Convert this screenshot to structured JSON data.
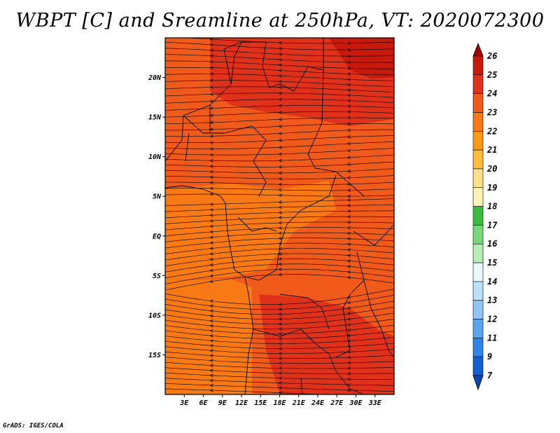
{
  "title": "WBPT [C] and Sreamline at 250hPa, VT: 2020072300",
  "credit": "GrADS: IGES/COLA",
  "map": {
    "lon_range": [
      0,
      36
    ],
    "lat_range": [
      -20,
      25
    ],
    "y_ticks": [
      "20N",
      "15N",
      "10N",
      "5N",
      "EQ",
      "5S",
      "10S",
      "15S"
    ],
    "y_tick_values": [
      20,
      15,
      10,
      5,
      0,
      -5,
      -10,
      -15
    ],
    "x_ticks": [
      "3E",
      "6E",
      "9E",
      "12E",
      "15E",
      "18E",
      "21E",
      "24E",
      "27E",
      "30E",
      "33E"
    ],
    "x_tick_values": [
      3,
      6,
      9,
      12,
      15,
      18,
      21,
      24,
      27,
      30,
      33
    ],
    "field_regions": [
      {
        "level": "24",
        "color": "#e0321a"
      },
      {
        "level": "23",
        "color": "#f05a1a"
      },
      {
        "level": "22",
        "color": "#f97a14"
      },
      {
        "level": "25",
        "color": "#c8190f"
      }
    ]
  },
  "colorbar": {
    "labels": [
      "26",
      "25",
      "24",
      "23",
      "22",
      "21",
      "20",
      "19",
      "18",
      "17",
      "16",
      "15",
      "14",
      "13",
      "12",
      "11",
      "9",
      "7"
    ],
    "colors": [
      "#a50000",
      "#c8190f",
      "#e0321a",
      "#f05a1a",
      "#f97a14",
      "#fc9a18",
      "#fcbc3c",
      "#fde08a",
      "#fdf3b5",
      "#3cbc3c",
      "#78d878",
      "#b4eeb4",
      "#e8f8ff",
      "#bae0fb",
      "#8ec6f7",
      "#5aa5f0",
      "#2e84e8",
      "#1460d2",
      "#0a46b4"
    ]
  }
}
